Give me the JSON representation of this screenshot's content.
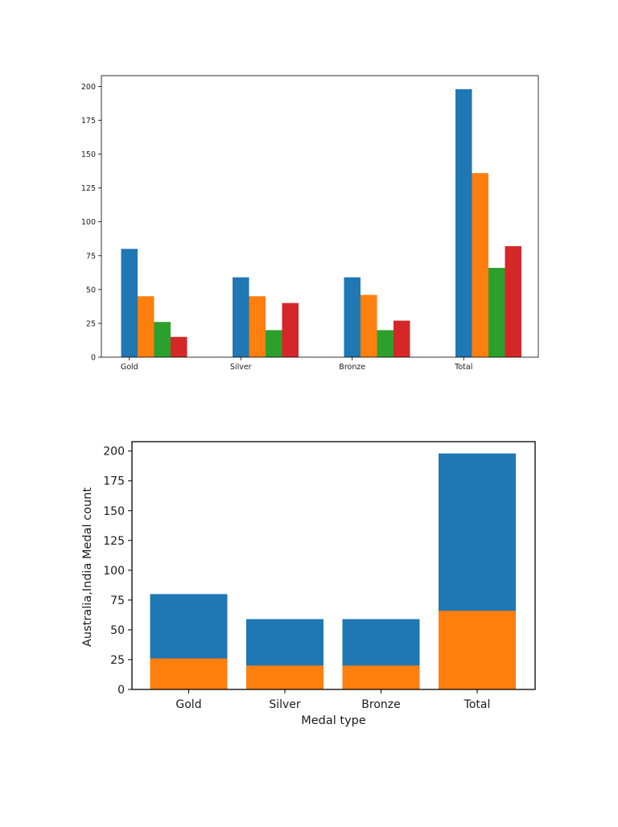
{
  "chart_data": [
    {
      "type": "bar",
      "categories": [
        "Gold",
        "Silver",
        "Bronze",
        "Total"
      ],
      "series": [
        {
          "values": [
            80,
            59,
            59,
            198
          ],
          "color": "#1f77b4"
        },
        {
          "values": [
            45,
            45,
            46,
            136
          ],
          "color": "#ff7f0e"
        },
        {
          "values": [
            26,
            20,
            20,
            66
          ],
          "color": "#2ca02c"
        },
        {
          "values": [
            15,
            40,
            27,
            82
          ],
          "color": "#d62728"
        }
      ],
      "yticks": [
        0,
        25,
        50,
        75,
        100,
        125,
        150,
        175,
        200
      ],
      "ylim": [
        0,
        208
      ],
      "xlabel": "",
      "ylabel": "",
      "grid": false,
      "legend": "none"
    },
    {
      "type": "bar",
      "stacked": "overlay",
      "categories": [
        "Gold",
        "Silver",
        "Bronze",
        "Total"
      ],
      "series": [
        {
          "values": [
            80,
            59,
            59,
            198
          ],
          "color": "#1f77b4"
        },
        {
          "values": [
            26,
            20,
            20,
            66
          ],
          "color": "#ff7f0e"
        }
      ],
      "yticks": [
        0,
        25,
        50,
        75,
        100,
        125,
        150,
        175,
        200
      ],
      "ylim": [
        0,
        207.9
      ],
      "xlabel": "Medal type",
      "ylabel": "Australia,India Medal count",
      "grid": false,
      "legend": "none"
    }
  ]
}
